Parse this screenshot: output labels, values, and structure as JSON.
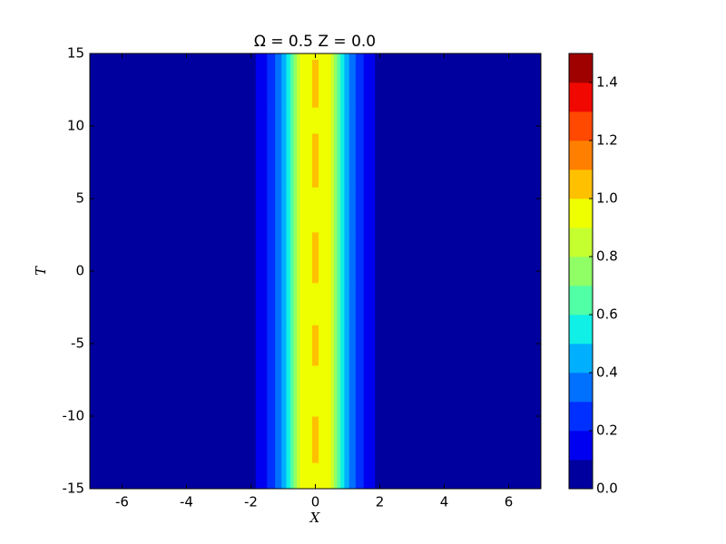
{
  "chart_data": {
    "type": "contourf",
    "title": "Ω = 0.5  Z = 0.0",
    "xlabel": "X",
    "ylabel": "T",
    "xlim": [
      -7,
      7
    ],
    "xticks": [
      -6,
      -4,
      -2,
      0,
      2,
      4,
      6
    ],
    "ylim": [
      -15,
      15
    ],
    "yticks": [
      -15,
      -10,
      -5,
      0,
      5,
      10,
      15
    ],
    "x_edges": [
      -7,
      -1.85,
      -1.5,
      -1.25,
      -1.05,
      -0.9,
      -0.78,
      -0.68,
      -0.58,
      -0.48,
      -0.1,
      0.1,
      0.48,
      0.58,
      0.68,
      0.78,
      0.9,
      1.05,
      1.25,
      1.5,
      1.85,
      7
    ],
    "t_edges": [
      -15,
      -13.2,
      -10,
      -6.5,
      -3.7,
      -0.8,
      2.7,
      5.8,
      9.5,
      11.3,
      14.6,
      15
    ],
    "z": [
      [
        0.05,
        0.15,
        0.25,
        0.35,
        0.45,
        0.55,
        0.65,
        0.75,
        0.85,
        0.95,
        0.95,
        0.95,
        0.85,
        0.75,
        0.65,
        0.55,
        0.45,
        0.35,
        0.25,
        0.15,
        0.05
      ],
      [
        0.05,
        0.15,
        0.25,
        0.35,
        0.45,
        0.55,
        0.65,
        0.75,
        0.85,
        0.95,
        1.05,
        0.95,
        0.85,
        0.75,
        0.65,
        0.55,
        0.45,
        0.35,
        0.25,
        0.15,
        0.05
      ],
      [
        0.05,
        0.15,
        0.25,
        0.35,
        0.45,
        0.55,
        0.65,
        0.75,
        0.85,
        0.95,
        0.95,
        0.95,
        0.85,
        0.75,
        0.65,
        0.55,
        0.45,
        0.35,
        0.25,
        0.15,
        0.05
      ],
      [
        0.05,
        0.15,
        0.25,
        0.35,
        0.45,
        0.55,
        0.65,
        0.75,
        0.85,
        0.95,
        1.05,
        0.95,
        0.85,
        0.75,
        0.65,
        0.55,
        0.45,
        0.35,
        0.25,
        0.15,
        0.05
      ],
      [
        0.05,
        0.15,
        0.25,
        0.35,
        0.45,
        0.55,
        0.65,
        0.75,
        0.85,
        0.95,
        0.95,
        0.95,
        0.85,
        0.75,
        0.65,
        0.55,
        0.45,
        0.35,
        0.25,
        0.15,
        0.05
      ],
      [
        0.05,
        0.15,
        0.25,
        0.35,
        0.45,
        0.55,
        0.65,
        0.75,
        0.85,
        0.95,
        1.05,
        0.95,
        0.85,
        0.75,
        0.65,
        0.55,
        0.45,
        0.35,
        0.25,
        0.15,
        0.05
      ],
      [
        0.05,
        0.15,
        0.25,
        0.35,
        0.45,
        0.55,
        0.65,
        0.75,
        0.85,
        0.95,
        0.95,
        0.95,
        0.85,
        0.75,
        0.65,
        0.55,
        0.45,
        0.35,
        0.25,
        0.15,
        0.05
      ],
      [
        0.05,
        0.15,
        0.25,
        0.35,
        0.45,
        0.55,
        0.65,
        0.75,
        0.85,
        0.95,
        1.05,
        0.95,
        0.85,
        0.75,
        0.65,
        0.55,
        0.45,
        0.35,
        0.25,
        0.15,
        0.05
      ],
      [
        0.05,
        0.15,
        0.25,
        0.35,
        0.45,
        0.55,
        0.65,
        0.75,
        0.85,
        0.95,
        0.95,
        0.95,
        0.85,
        0.75,
        0.65,
        0.55,
        0.45,
        0.35,
        0.25,
        0.15,
        0.05
      ],
      [
        0.05,
        0.15,
        0.25,
        0.35,
        0.45,
        0.55,
        0.65,
        0.75,
        0.85,
        0.95,
        1.05,
        0.95,
        0.85,
        0.75,
        0.65,
        0.55,
        0.45,
        0.35,
        0.25,
        0.15,
        0.05
      ],
      [
        0.05,
        0.15,
        0.25,
        0.35,
        0.45,
        0.55,
        0.65,
        0.75,
        0.85,
        0.95,
        0.95,
        0.95,
        0.85,
        0.75,
        0.65,
        0.55,
        0.45,
        0.35,
        0.25,
        0.15,
        0.05
      ]
    ],
    "levels": [
      0,
      0.1,
      0.2,
      0.3,
      0.4,
      0.5,
      0.6,
      0.7,
      0.8,
      0.9,
      1.0,
      1.1,
      1.2,
      1.3,
      1.4,
      1.5
    ],
    "colors": [
      "#00009f",
      "#0000f1",
      "#0030ff",
      "#0070ff",
      "#00b0ff",
      "#10f0e6",
      "#50ffa6",
      "#90ff66",
      "#c6ff30",
      "#f0ff00",
      "#ffc000",
      "#ff8000",
      "#ff4800",
      "#f10800",
      "#9f0000"
    ],
    "cticks": [
      {
        "value": 0,
        "label": "0.0"
      },
      0.2,
      0.4,
      0.6,
      0.8,
      {
        "value": 1,
        "label": "1.0"
      },
      1.2,
      1.4
    ]
  }
}
